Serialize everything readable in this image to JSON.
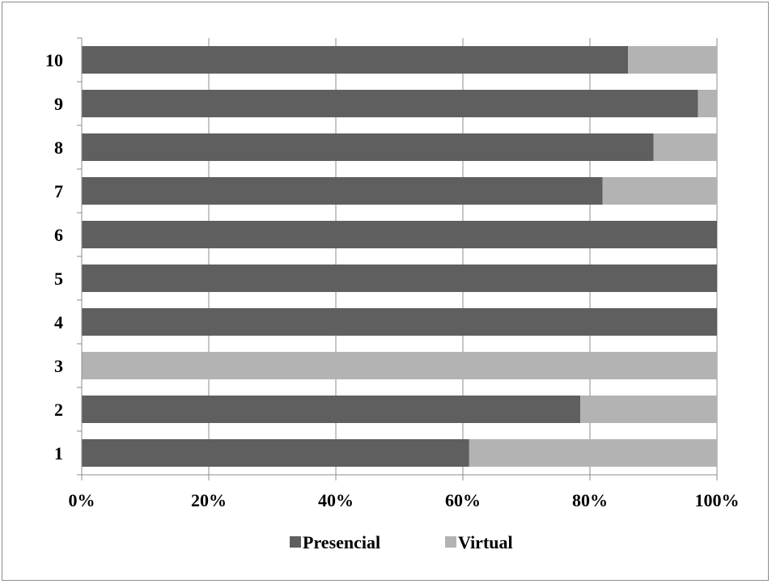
{
  "chart_data": {
    "type": "bar",
    "orientation": "horizontal",
    "stacked": "percent",
    "categories": [
      "1",
      "2",
      "3",
      "4",
      "5",
      "6",
      "7",
      "8",
      "9",
      "10"
    ],
    "series": [
      {
        "name": "Presencial",
        "color": "#5f5f5f",
        "values": [
          61,
          78.5,
          0,
          100,
          100,
          100,
          82,
          90,
          97,
          86
        ]
      },
      {
        "name": "Virtual",
        "color": "#b3b3b3",
        "values": [
          39,
          21.5,
          100,
          0,
          0,
          0,
          18,
          10,
          3,
          14
        ]
      }
    ],
    "x_ticks": [
      "0%",
      "20%",
      "40%",
      "60%",
      "80%",
      "100%"
    ],
    "xlim": [
      0,
      100
    ],
    "grid": "vertical",
    "legend": "bottom"
  }
}
